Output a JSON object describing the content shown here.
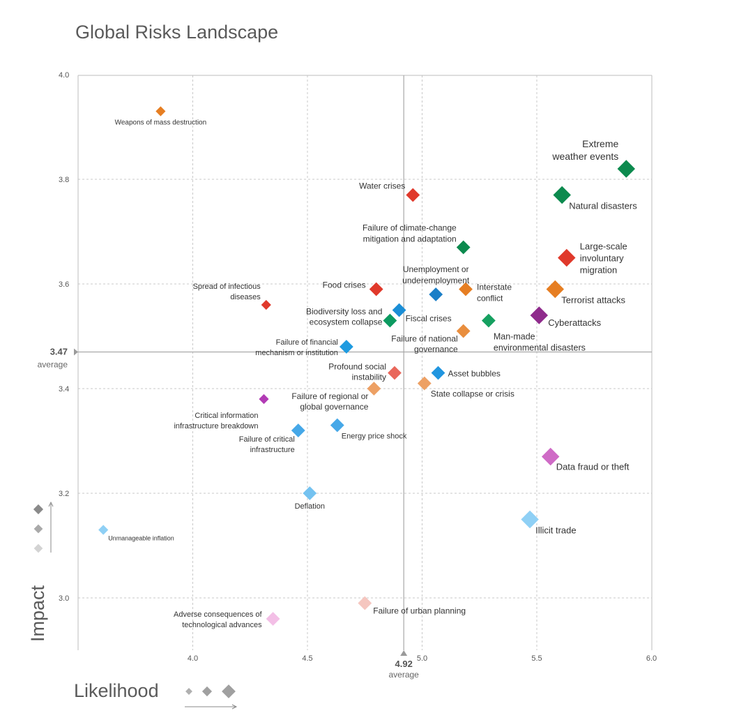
{
  "chart_data": {
    "type": "scatter",
    "title": "Global Risks Landscape",
    "xlabel": "Likelihood",
    "ylabel": "Impact",
    "xlim": [
      3.5,
      6.0
    ],
    "ylim": [
      2.9,
      4.0
    ],
    "x_ticks": [
      "4.0",
      "4.5",
      "5.0",
      "5.5",
      "6.0"
    ],
    "y_ticks": [
      "3.0",
      "3.2",
      "3.4",
      "3.6",
      "3.8",
      "4.0"
    ],
    "average_x": {
      "value": "4.92",
      "label": "average"
    },
    "average_y": {
      "value": "3.47",
      "label": "average"
    },
    "grid": true,
    "categories": {
      "economic": "#1b8ed6",
      "environmental": "#0c8a5a",
      "geopolitical": "#e9782a",
      "societal": "#e23b2b",
      "technological": "#8f2b8c"
    },
    "points": [
      {
        "label": "Weapons of mass destruction",
        "x": 3.86,
        "y": 3.93,
        "size": "small",
        "color": "#e67e22",
        "lines": [
          "Weapons of mass destruction"
        ]
      },
      {
        "label": "Extreme weather events",
        "x": 5.89,
        "y": 3.82,
        "size": "large",
        "color": "#0c8a4e",
        "lines": [
          "Extreme",
          "weather events"
        ]
      },
      {
        "label": "Natural disasters",
        "x": 5.61,
        "y": 3.77,
        "size": "large",
        "color": "#0c8a4e",
        "lines": [
          "Natural disasters"
        ]
      },
      {
        "label": "Water crises",
        "x": 4.96,
        "y": 3.77,
        "size": "medium",
        "color": "#e0392b",
        "lines": [
          "Water crises"
        ]
      },
      {
        "label": "Failure of climate-change mitigation and adaptation",
        "x": 5.18,
        "y": 3.67,
        "size": "medium",
        "color": "#0c8a4e",
        "lines": [
          "Failure of climate-change",
          "mitigation and adaptation"
        ]
      },
      {
        "label": "Large-scale involuntary migration",
        "x": 5.63,
        "y": 3.65,
        "size": "large",
        "color": "#e0392b",
        "lines": [
          "Large-scale",
          "involuntary",
          "migration"
        ]
      },
      {
        "label": "Food crises",
        "x": 4.8,
        "y": 3.59,
        "size": "medium",
        "color": "#e0392b",
        "lines": [
          "Food crises"
        ]
      },
      {
        "label": "Unemployment or underemployment",
        "x": 5.06,
        "y": 3.58,
        "size": "medium",
        "color": "#1b7fc7",
        "lines": [
          "Unemployment or",
          "underemployment"
        ]
      },
      {
        "label": "Interstate conflict",
        "x": 5.19,
        "y": 3.59,
        "size": "medium",
        "color": "#e67e22",
        "lines": [
          "Interstate",
          "conflict"
        ]
      },
      {
        "label": "Terrorist attacks",
        "x": 5.58,
        "y": 3.59,
        "size": "large",
        "color": "#e67e22",
        "lines": [
          "Terrorist attacks"
        ]
      },
      {
        "label": "Spread of infectious diseases",
        "x": 4.32,
        "y": 3.56,
        "size": "small",
        "color": "#e0392b",
        "lines": [
          "Spread of infectious",
          "diseases"
        ]
      },
      {
        "label": "Fiscal crises",
        "x": 4.9,
        "y": 3.55,
        "size": "medium",
        "color": "#1b8ed6",
        "lines": [
          "Fiscal crises"
        ]
      },
      {
        "label": "Biodiversity loss and ecosystem collapse",
        "x": 4.86,
        "y": 3.53,
        "size": "medium",
        "color": "#0c9a60",
        "lines": [
          "Biodiversity loss and",
          "ecosystem collapse"
        ]
      },
      {
        "label": "Man-made environmental disasters",
        "x": 5.29,
        "y": 3.53,
        "size": "medium",
        "color": "#16a060",
        "lines": [
          "Man-made",
          "environmental disasters"
        ]
      },
      {
        "label": "Cyberattacks",
        "x": 5.51,
        "y": 3.54,
        "size": "large",
        "color": "#8f2b8c",
        "lines": [
          "Cyberattacks"
        ]
      },
      {
        "label": "Failure of national governance",
        "x": 5.18,
        "y": 3.51,
        "size": "medium",
        "color": "#e98e3e",
        "lines": [
          "Failure of national",
          "governance"
        ]
      },
      {
        "label": "Failure of financial mechanism or institution",
        "x": 4.67,
        "y": 3.48,
        "size": "medium",
        "color": "#1f9be0",
        "lines": [
          "Failure of financial",
          "mechanism or institution"
        ]
      },
      {
        "label": "Profound social instability",
        "x": 4.88,
        "y": 3.43,
        "size": "medium",
        "color": "#e9675b",
        "lines": [
          "Profound social",
          "instability"
        ]
      },
      {
        "label": "Asset bubbles",
        "x": 5.07,
        "y": 3.43,
        "size": "medium",
        "color": "#2196e0",
        "lines": [
          "Asset bubbles"
        ]
      },
      {
        "label": "State collapse or crisis",
        "x": 5.01,
        "y": 3.41,
        "size": "medium",
        "color": "#eda064",
        "lines": [
          "State collapse or crisis"
        ]
      },
      {
        "label": "Failure of regional or global governance",
        "x": 4.79,
        "y": 3.4,
        "size": "medium",
        "color": "#eda064",
        "lines": [
          "Failure of regional or",
          "global governance"
        ]
      },
      {
        "label": "Critical information infrastructure breakdown",
        "x": 4.31,
        "y": 3.38,
        "size": "small",
        "color": "#b23bb5",
        "lines": [
          "Critical information",
          "infrastructure breakdown"
        ]
      },
      {
        "label": "Energy price shock",
        "x": 4.63,
        "y": 3.33,
        "size": "medium",
        "color": "#46a8e8",
        "lines": [
          "Energy price shock"
        ]
      },
      {
        "label": "Failure of critical infrastructure",
        "x": 4.46,
        "y": 3.32,
        "size": "medium",
        "color": "#46a8e8",
        "lines": [
          "Failure of critical",
          "infrastructure"
        ]
      },
      {
        "label": "Data fraud or theft",
        "x": 5.56,
        "y": 3.27,
        "size": "large",
        "color": "#cf6bc6",
        "lines": [
          "Data fraud or theft"
        ]
      },
      {
        "label": "Deflation",
        "x": 4.51,
        "y": 3.2,
        "size": "medium",
        "color": "#74c2f0",
        "lines": [
          "Deflation"
        ]
      },
      {
        "label": "Illicit trade",
        "x": 5.47,
        "y": 3.15,
        "size": "large",
        "color": "#8fd0f5",
        "lines": [
          "Illicit trade"
        ]
      },
      {
        "label": "Unmanageable inflation",
        "x": 3.61,
        "y": 3.13,
        "size": "small",
        "color": "#8fd0f5",
        "lines": [
          "Unmanageable inflation"
        ]
      },
      {
        "label": "Failure of urban planning",
        "x": 4.75,
        "y": 2.99,
        "size": "medium",
        "color": "#f5c6bf",
        "lines": [
          "Failure of urban planning"
        ]
      },
      {
        "label": "Adverse consequences of technological advances",
        "x": 4.35,
        "y": 2.96,
        "size": "medium",
        "color": "#f3bfe6",
        "lines": [
          "Adverse consequences of",
          "technological advances"
        ]
      }
    ]
  }
}
